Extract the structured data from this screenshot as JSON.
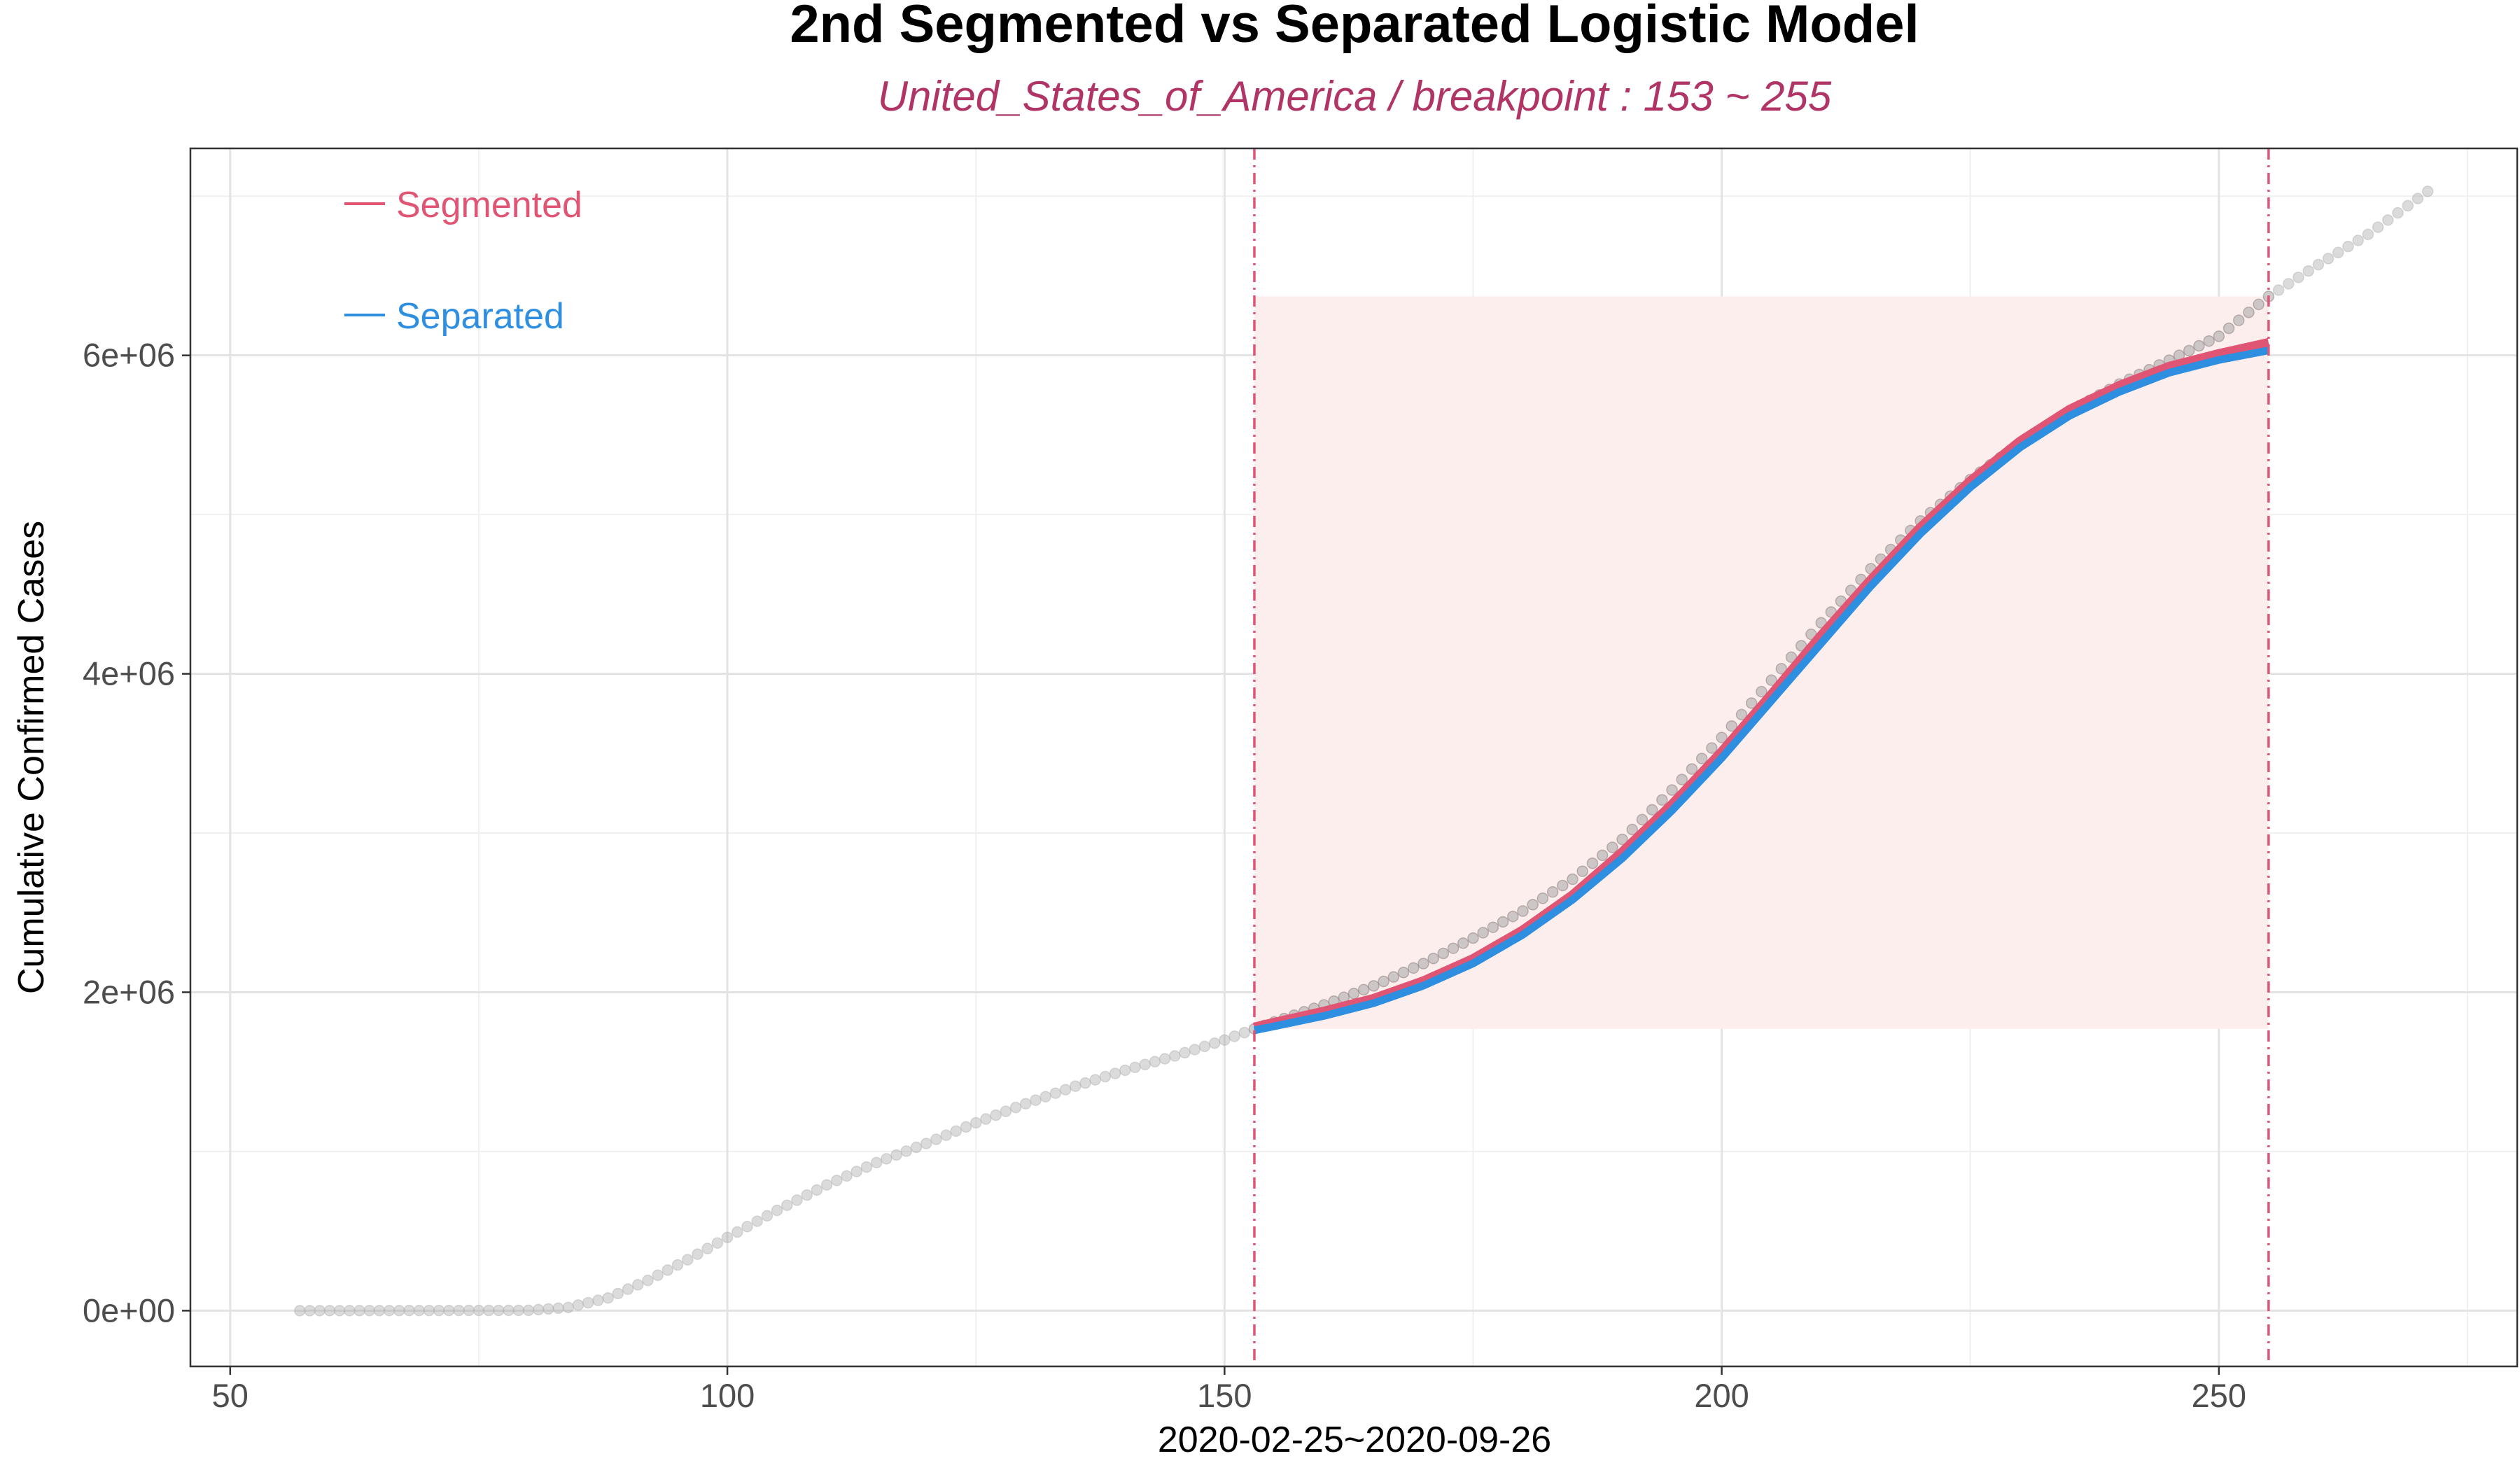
{
  "chart_data": {
    "type": "scatter",
    "title": "2nd Segmented vs Separated Logistic Model",
    "subtitle": "United_States_of_America  / breakpoint : 153 ~ 255",
    "xlabel": "2020-02-25~2020-09-26",
    "ylabel": "Cumulative Confirmed Cases",
    "xlim": [
      46,
      280
    ],
    "ylim": [
      -350000,
      7300000
    ],
    "x_ticks": [
      {
        "value": 50,
        "label": "50"
      },
      {
        "value": 100,
        "label": "100"
      },
      {
        "value": 150,
        "label": "150"
      },
      {
        "value": 200,
        "label": "200"
      },
      {
        "value": 250,
        "label": "250"
      }
    ],
    "y_ticks": [
      {
        "value": 0,
        "label": "0e+00"
      },
      {
        "value": 2000000,
        "label": "2e+06"
      },
      {
        "value": 4000000,
        "label": "4e+06"
      },
      {
        "value": 6000000,
        "label": "6e+06"
      }
    ],
    "grid": true,
    "breakpoints": [
      153,
      255
    ],
    "highlight_region": {
      "x": [
        153,
        255
      ],
      "y": [
        1770000,
        6370000
      ],
      "color": "#fdeeee"
    },
    "observed": {
      "x_start": 57,
      "anchors": [
        [
          57,
          0
        ],
        [
          80,
          2000
        ],
        [
          84,
          20000
        ],
        [
          88,
          80000
        ],
        [
          92,
          190000
        ],
        [
          96,
          320000
        ],
        [
          100,
          460000
        ],
        [
          105,
          630000
        ],
        [
          110,
          790000
        ],
        [
          115,
          930000
        ],
        [
          120,
          1050000
        ],
        [
          125,
          1180000
        ],
        [
          130,
          1300000
        ],
        [
          135,
          1410000
        ],
        [
          140,
          1510000
        ],
        [
          145,
          1600000
        ],
        [
          150,
          1700000
        ],
        [
          153,
          1770000
        ],
        [
          160,
          1920000
        ],
        [
          165,
          2040000
        ],
        [
          170,
          2180000
        ],
        [
          175,
          2340000
        ],
        [
          180,
          2510000
        ],
        [
          185,
          2710000
        ],
        [
          190,
          2960000
        ],
        [
          195,
          3270000
        ],
        [
          200,
          3600000
        ],
        [
          205,
          3960000
        ],
        [
          210,
          4320000
        ],
        [
          215,
          4660000
        ],
        [
          220,
          4960000
        ],
        [
          225,
          5220000
        ],
        [
          230,
          5450000
        ],
        [
          235,
          5650000
        ],
        [
          240,
          5820000
        ],
        [
          245,
          5970000
        ],
        [
          250,
          6120000
        ],
        [
          255,
          6370000
        ],
        [
          260,
          6570000
        ],
        [
          265,
          6760000
        ],
        [
          271,
          7030000
        ]
      ],
      "color": "#a6a6a6"
    },
    "series": [
      {
        "name": "Segmented",
        "color": "#e05574",
        "x": [
          153,
          155,
          160,
          165,
          170,
          175,
          180,
          185,
          190,
          195,
          200,
          205,
          210,
          215,
          220,
          225,
          230,
          235,
          240,
          245,
          250,
          255
        ],
        "y": [
          1770000,
          1800000,
          1870000,
          1950000,
          2060000,
          2200000,
          2380000,
          2600000,
          2870000,
          3170000,
          3500000,
          3860000,
          4230000,
          4580000,
          4910000,
          5200000,
          5450000,
          5650000,
          5800000,
          5920000,
          6000000,
          6070000
        ]
      },
      {
        "name": "Separated",
        "color": "#2e8ee0",
        "x": [
          153,
          155,
          160,
          165,
          170,
          175,
          180,
          185,
          190,
          195,
          200,
          205,
          210,
          215,
          220,
          225,
          230,
          235,
          240,
          245,
          250,
          255
        ],
        "y": [
          1770000,
          1795000,
          1860000,
          1940000,
          2050000,
          2190000,
          2370000,
          2590000,
          2850000,
          3150000,
          3480000,
          3840000,
          4200000,
          4560000,
          4890000,
          5180000,
          5430000,
          5630000,
          5780000,
          5900000,
          5980000,
          6040000
        ]
      }
    ],
    "legend_position": "top-left"
  }
}
